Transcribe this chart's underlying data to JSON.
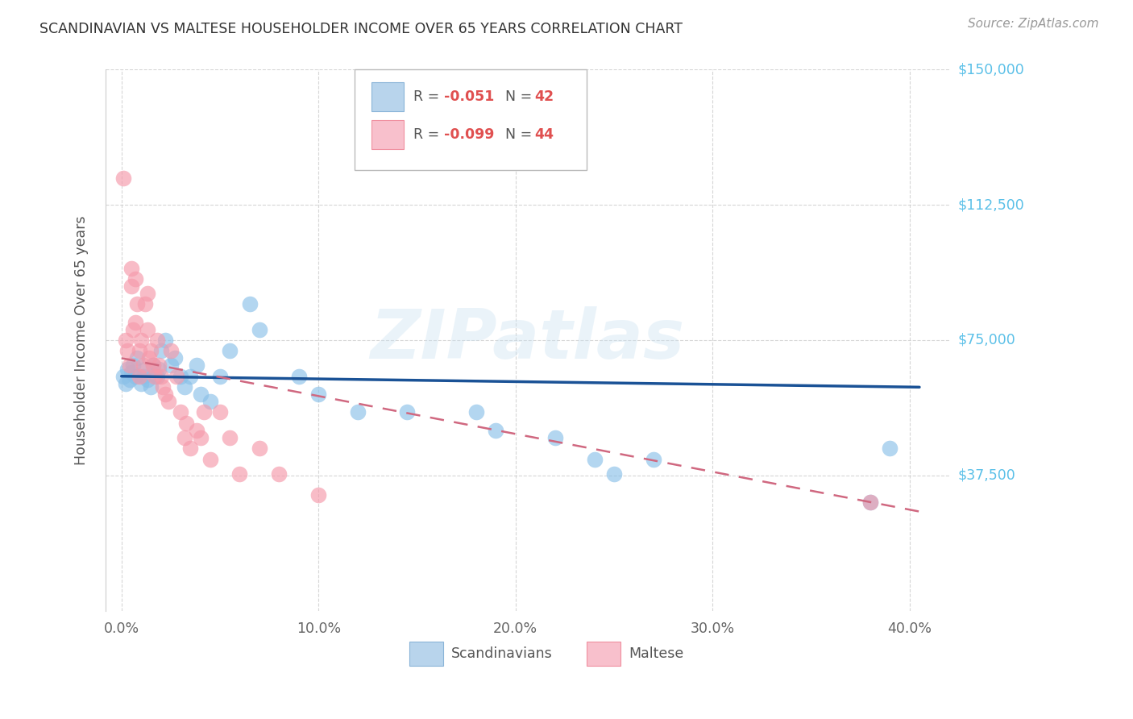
{
  "title": "SCANDINAVIAN VS MALTESE HOUSEHOLDER INCOME OVER 65 YEARS CORRELATION CHART",
  "source": "Source: ZipAtlas.com",
  "ylabel": "Householder Income Over 65 years",
  "xlabel_ticks": [
    "0.0%",
    "10.0%",
    "20.0%",
    "30.0%",
    "40.0%"
  ],
  "xlabel_vals": [
    0.0,
    0.1,
    0.2,
    0.3,
    0.4
  ],
  "ylim": [
    0,
    150000
  ],
  "yticks": [
    0,
    37500,
    75000,
    112500,
    150000
  ],
  "ytick_labels": [
    "",
    "$37,500",
    "$75,000",
    "$112,500",
    "$150,000"
  ],
  "background_color": "#ffffff",
  "grid_color": "#cccccc",
  "watermark": "ZIPatlas",
  "scandinavian_color": "#8ac0e8",
  "maltese_color": "#f599aa",
  "trend_scand_color": "#1a5296",
  "trend_maltese_color": "#d06880",
  "r_value_color": "#e05050",
  "n_value_color": "#e05050",
  "ytick_color": "#5bc0e8",
  "scand_x": [
    0.001,
    0.002,
    0.003,
    0.004,
    0.005,
    0.006,
    0.007,
    0.008,
    0.01,
    0.011,
    0.012,
    0.013,
    0.015,
    0.016,
    0.018,
    0.019,
    0.02,
    0.022,
    0.025,
    0.027,
    0.03,
    0.032,
    0.035,
    0.038,
    0.04,
    0.045,
    0.05,
    0.055,
    0.065,
    0.07,
    0.09,
    0.1,
    0.12,
    0.145,
    0.18,
    0.19,
    0.22,
    0.24,
    0.25,
    0.27,
    0.38,
    0.39
  ],
  "scand_y": [
    65000,
    63000,
    67000,
    64000,
    66000,
    68000,
    65000,
    70000,
    63000,
    65000,
    67000,
    64000,
    62000,
    68000,
    65000,
    67000,
    72000,
    75000,
    68000,
    70000,
    65000,
    62000,
    65000,
    68000,
    60000,
    58000,
    65000,
    72000,
    85000,
    78000,
    65000,
    60000,
    55000,
    55000,
    55000,
    50000,
    48000,
    42000,
    38000,
    42000,
    30000,
    45000
  ],
  "maltese_x": [
    0.001,
    0.002,
    0.003,
    0.004,
    0.005,
    0.005,
    0.006,
    0.007,
    0.007,
    0.008,
    0.009,
    0.009,
    0.01,
    0.011,
    0.012,
    0.013,
    0.013,
    0.014,
    0.015,
    0.016,
    0.017,
    0.018,
    0.019,
    0.02,
    0.021,
    0.022,
    0.024,
    0.025,
    0.028,
    0.03,
    0.032,
    0.033,
    0.035,
    0.038,
    0.04,
    0.042,
    0.045,
    0.05,
    0.055,
    0.06,
    0.07,
    0.08,
    0.1,
    0.38
  ],
  "maltese_y": [
    120000,
    75000,
    72000,
    68000,
    90000,
    95000,
    78000,
    80000,
    92000,
    85000,
    72000,
    65000,
    75000,
    68000,
    85000,
    88000,
    78000,
    70000,
    72000,
    68000,
    65000,
    75000,
    68000,
    65000,
    62000,
    60000,
    58000,
    72000,
    65000,
    55000,
    48000,
    52000,
    45000,
    50000,
    48000,
    55000,
    42000,
    55000,
    48000,
    38000,
    45000,
    38000,
    32000,
    30000
  ]
}
